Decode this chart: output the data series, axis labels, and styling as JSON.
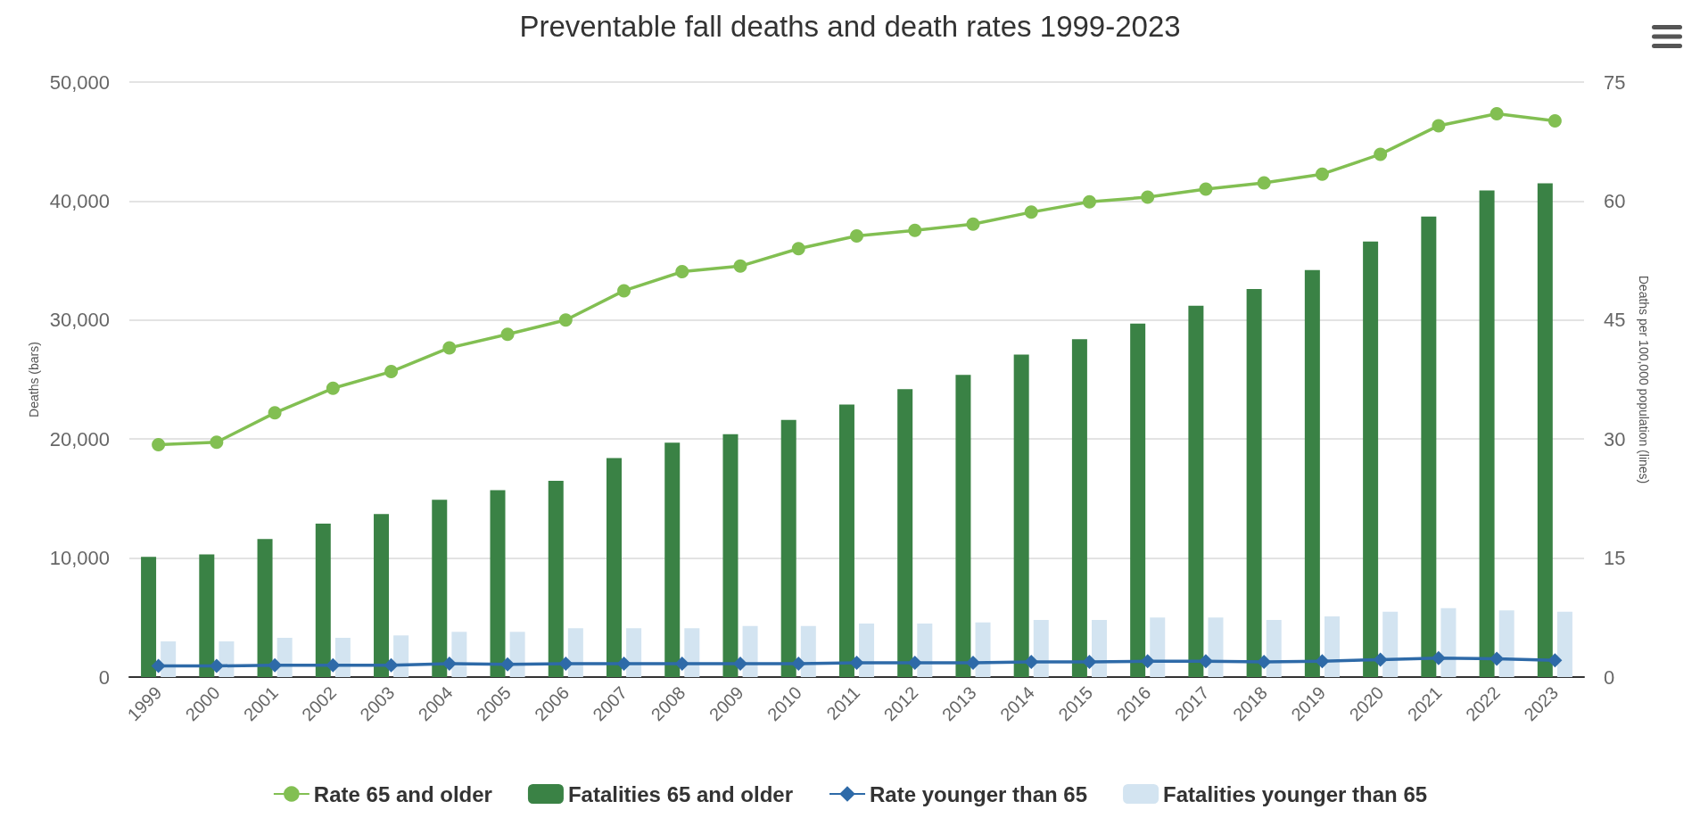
{
  "chart_data": {
    "type": "bar",
    "title": "Preventable fall deaths and death rates 1999-2023",
    "ylabel": "Deaths (bars)",
    "y2label": "Deaths per 100,000 population (lines)",
    "categories": [
      "1999",
      "2000",
      "2001",
      "2002",
      "2003",
      "2004",
      "2005",
      "2006",
      "2007",
      "2008",
      "2009",
      "2010",
      "2011",
      "2012",
      "2013",
      "2014",
      "2015",
      "2016",
      "2017",
      "2018",
      "2019",
      "2020",
      "2021",
      "2022",
      "2023"
    ],
    "series": [
      {
        "name": "Rate 65 and older",
        "type": "line",
        "axis": "y2",
        "marker": "circle",
        "color": "#82bf52",
        "values": [
          29.3,
          29.6,
          33.3,
          36.4,
          38.5,
          41.5,
          43.2,
          45.0,
          48.7,
          51.1,
          51.8,
          54.0,
          55.6,
          56.3,
          57.1,
          58.6,
          59.9,
          60.5,
          61.5,
          62.3,
          63.4,
          65.9,
          69.5,
          71.0,
          70.1
        ]
      },
      {
        "name": "Fatalities 65 and older",
        "color": "#3a8245",
        "values": [
          10100,
          10300,
          11600,
          12900,
          13700,
          14900,
          15700,
          16500,
          18400,
          19700,
          20400,
          21600,
          22900,
          24200,
          25400,
          27100,
          28400,
          29700,
          31200,
          32600,
          34200,
          36600,
          38700,
          40900,
          41500
        ]
      },
      {
        "name": "Rate younger than 65",
        "type": "line",
        "axis": "y2",
        "marker": "diamond",
        "color": "#2e6aa8",
        "values": [
          1.4,
          1.4,
          1.5,
          1.5,
          1.5,
          1.7,
          1.6,
          1.7,
          1.7,
          1.7,
          1.7,
          1.7,
          1.8,
          1.8,
          1.8,
          1.9,
          1.9,
          2.0,
          2.0,
          1.9,
          2.0,
          2.2,
          2.4,
          2.3,
          2.1
        ]
      },
      {
        "name": "Fatalities younger than 65",
        "color": "#d3e4f1",
        "values": [
          3000,
          3000,
          3300,
          3300,
          3500,
          3800,
          3800,
          4100,
          4100,
          4100,
          4300,
          4300,
          4500,
          4500,
          4600,
          4800,
          4800,
          5000,
          5000,
          4800,
          5100,
          5500,
          5800,
          5600,
          5500
        ]
      }
    ],
    "ylim": [
      0,
      50000
    ],
    "yticks": [
      0,
      {
        "value": 10000,
        "label": "10,000"
      },
      {
        "value": 20000,
        "label": "20,000"
      },
      {
        "value": 30000,
        "label": "30,000"
      },
      {
        "value": 40000,
        "label": "40,000"
      },
      {
        "value": 50000,
        "label": "50,000"
      }
    ],
    "y2lim": [
      0,
      75
    ],
    "y2ticks": [
      0,
      15,
      30,
      45,
      60,
      75
    ],
    "grid": "y",
    "legend": "bottom"
  }
}
